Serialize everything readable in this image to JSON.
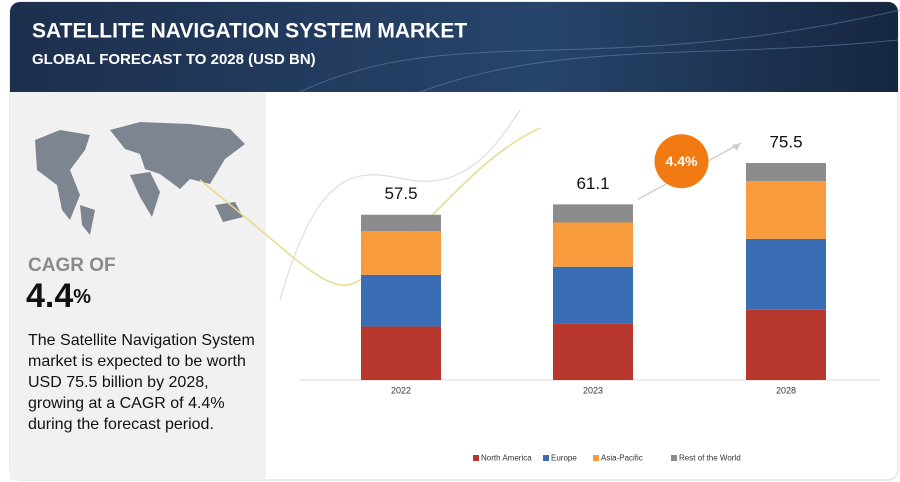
{
  "header": {
    "title": "SATELLITE NAVIGATION SYSTEM MARKET",
    "subtitle": "GLOBAL FORECAST TO 2028 (USD BN)"
  },
  "side_panel": {
    "cagr_label": "CAGR OF",
    "cagr_number": "4.4",
    "cagr_unit": "%",
    "description": "The Satellite Navigation System market is expected to be worth USD 75.5 billion by 2028, growing at a CAGR of 4.4% during the forecast period."
  },
  "chart_data": {
    "type": "stacked_bar",
    "categories": [
      "2022",
      "2023",
      "2028"
    ],
    "series": [
      {
        "name": "North America",
        "color": "#b7372d",
        "values": [
          18.6,
          19.7,
          24.4
        ]
      },
      {
        "name": "Europe",
        "color": "#3b6db4",
        "values": [
          18.0,
          19.7,
          24.7
        ]
      },
      {
        "name": "Asia-Pacific",
        "color": "#f89b3d",
        "values": [
          15.2,
          15.4,
          20.1
        ]
      },
      {
        "name": "Rest of the World",
        "color": "#8c8c8c",
        "values": [
          5.7,
          6.3,
          6.3
        ]
      }
    ],
    "totals": [
      57.5,
      61.1,
      75.5
    ],
    "annotation": "4.4%"
  }
}
